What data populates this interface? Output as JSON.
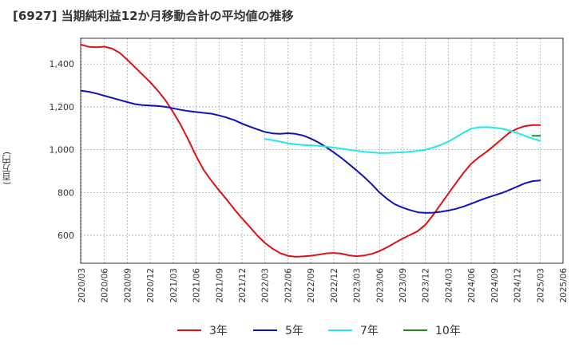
{
  "chart_data": {
    "type": "line",
    "title": "[6927]  当期純利益12か月移動合計の平均値の推移",
    "xlabel": "",
    "ylabel": "(百万円)",
    "ylim": [
      470,
      1520
    ],
    "yticks": [
      600,
      800,
      1000,
      1200,
      1400
    ],
    "ytick_labels": [
      "600",
      "800",
      "1,000",
      "1,200",
      "1,400"
    ],
    "xticks": [
      "2020/03",
      "2020/06",
      "2020/09",
      "2020/12",
      "2021/03",
      "2021/06",
      "2021/09",
      "2021/12",
      "2022/03",
      "2022/06",
      "2022/09",
      "2022/12",
      "2023/03",
      "2023/06",
      "2023/09",
      "2023/12",
      "2024/03",
      "2024/06",
      "2024/09",
      "2024/12",
      "2025/03",
      "2025/06"
    ],
    "grid": true,
    "legend_position": "bottom",
    "series": [
      {
        "name": "3年",
        "color": "#dd1111",
        "x": [
          "2020/03",
          "2020/04",
          "2020/05",
          "2020/06",
          "2020/07",
          "2020/08",
          "2020/09",
          "2020/10",
          "2020/11",
          "2020/12",
          "2021/01",
          "2021/02",
          "2021/03",
          "2021/04",
          "2021/05",
          "2021/06",
          "2021/07",
          "2021/08",
          "2021/09",
          "2021/10",
          "2021/11",
          "2021/12",
          "2022/01",
          "2022/02",
          "2022/03",
          "2022/04",
          "2022/05",
          "2022/06",
          "2022/07",
          "2022/08",
          "2022/09",
          "2022/10",
          "2022/11",
          "2022/12",
          "2023/01",
          "2023/02",
          "2023/03",
          "2023/04",
          "2023/05",
          "2023/06",
          "2023/07",
          "2023/08",
          "2023/09",
          "2023/10",
          "2023/11",
          "2023/12",
          "2024/01",
          "2024/02",
          "2024/03",
          "2024/04",
          "2024/05",
          "2024/06",
          "2024/07",
          "2024/08",
          "2024/09",
          "2024/10",
          "2024/11",
          "2024/12",
          "2025/01",
          "2025/02",
          "2025/03"
        ],
        "values": [
          1490,
          1480,
          1478,
          1481,
          1472,
          1452,
          1420,
          1385,
          1350,
          1315,
          1275,
          1230,
          1175,
          1115,
          1045,
          970,
          905,
          855,
          810,
          767,
          722,
          680,
          640,
          600,
          565,
          538,
          517,
          505,
          500,
          502,
          505,
          510,
          516,
          518,
          515,
          507,
          503,
          506,
          514,
          527,
          545,
          565,
          585,
          602,
          620,
          650,
          695,
          745,
          795,
          845,
          893,
          935,
          965,
          990,
          1020,
          1050,
          1080,
          1098,
          1110,
          1115,
          1115
        ]
      },
      {
        "name": "5年",
        "color": "#1111bb",
        "x": [
          "2020/03",
          "2020/04",
          "2020/05",
          "2020/06",
          "2020/07",
          "2020/08",
          "2020/09",
          "2020/10",
          "2020/11",
          "2020/12",
          "2021/01",
          "2021/02",
          "2021/03",
          "2021/04",
          "2021/05",
          "2021/06",
          "2021/07",
          "2021/08",
          "2021/09",
          "2021/10",
          "2021/11",
          "2021/12",
          "2022/01",
          "2022/02",
          "2022/03",
          "2022/04",
          "2022/05",
          "2022/06",
          "2022/07",
          "2022/08",
          "2022/09",
          "2022/10",
          "2022/11",
          "2022/12",
          "2023/01",
          "2023/02",
          "2023/03",
          "2023/04",
          "2023/05",
          "2023/06",
          "2023/07",
          "2023/08",
          "2023/09",
          "2023/10",
          "2023/11",
          "2023/12",
          "2024/01",
          "2024/02",
          "2024/03",
          "2024/04",
          "2024/05",
          "2024/06",
          "2024/07",
          "2024/08",
          "2024/09",
          "2024/10",
          "2024/11",
          "2024/12",
          "2025/01",
          "2025/02",
          "2025/03"
        ],
        "values": [
          1275,
          1270,
          1262,
          1252,
          1242,
          1232,
          1222,
          1213,
          1208,
          1206,
          1204,
          1200,
          1193,
          1186,
          1180,
          1176,
          1172,
          1168,
          1160,
          1150,
          1138,
          1122,
          1108,
          1095,
          1083,
          1076,
          1074,
          1077,
          1074,
          1066,
          1052,
          1034,
          1012,
          988,
          962,
          933,
          903,
          872,
          838,
          800,
          770,
          745,
          730,
          718,
          708,
          705,
          706,
          710,
          716,
          724,
          735,
          748,
          762,
          775,
          787,
          798,
          812,
          828,
          843,
          853,
          856
        ]
      },
      {
        "name": "7年",
        "color": "#22e8e8",
        "x": [
          "2022/03",
          "2022/04",
          "2022/05",
          "2022/06",
          "2022/07",
          "2022/08",
          "2022/09",
          "2022/10",
          "2022/11",
          "2022/12",
          "2023/01",
          "2023/02",
          "2023/03",
          "2023/04",
          "2023/05",
          "2023/06",
          "2023/07",
          "2023/08",
          "2023/09",
          "2023/10",
          "2023/11",
          "2023/12",
          "2024/01",
          "2024/02",
          "2024/03",
          "2024/04",
          "2024/05",
          "2024/06",
          "2024/07",
          "2024/08",
          "2024/09",
          "2024/10",
          "2024/11",
          "2024/12",
          "2025/01",
          "2025/02",
          "2025/03"
        ],
        "values": [
          1050,
          1045,
          1038,
          1030,
          1025,
          1022,
          1020,
          1018,
          1014,
          1010,
          1005,
          1000,
          995,
          990,
          987,
          985,
          985,
          986,
          988,
          991,
          995,
          1000,
          1010,
          1022,
          1038,
          1058,
          1080,
          1098,
          1105,
          1106,
          1103,
          1098,
          1090,
          1078,
          1065,
          1052,
          1042
        ]
      },
      {
        "name": "10年",
        "color": "#228822",
        "x": [
          "2025/02",
          "2025/03"
        ],
        "values": [
          1065,
          1065
        ]
      }
    ]
  }
}
